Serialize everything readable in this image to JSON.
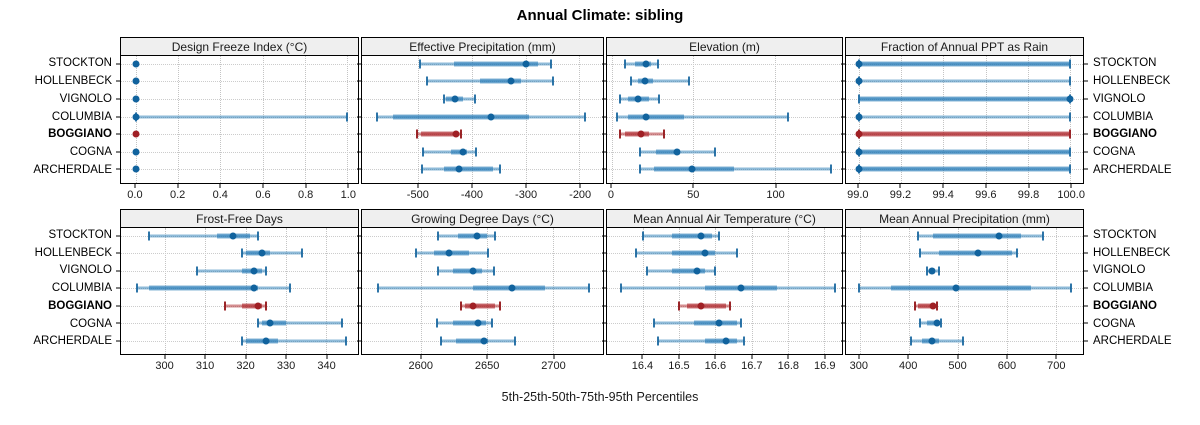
{
  "title": "Annual Climate: sibling",
  "caption": "5th-25th-50th-75th-95th Percentiles",
  "sites": [
    "STOCKTON",
    "HOLLENBECK",
    "VIGNOLO",
    "COLUMBIA",
    "BOGGIANO",
    "COGNA",
    "ARCHERDALE"
  ],
  "highlight_site": "BOGGIANO",
  "colors": {
    "series_blue": "#1f77b4",
    "series_red": "#a02025",
    "strip_background": "#efefef",
    "panel_border": "#000000",
    "grid_line": "#c4c4c4"
  },
  "percentile_labels": [
    "5th",
    "25th",
    "50th",
    "75th",
    "95th"
  ],
  "chart_data": [
    {
      "type": "interval-dotplot",
      "row": 0,
      "col": 0,
      "title": "Design Freeze Index (°C)",
      "xlim": [
        -0.07,
        1.05
      ],
      "ticks": [
        0.0,
        0.2,
        0.4,
        0.6,
        0.8,
        1.0
      ],
      "tick_labels": [
        "0.0",
        "0.2",
        "0.4",
        "0.6",
        "0.8",
        "1.0"
      ],
      "series": [
        {
          "site": "STOCKTON",
          "values": [
            0,
            0,
            0,
            0,
            0
          ]
        },
        {
          "site": "HOLLENBECK",
          "values": [
            0,
            0,
            0,
            0,
            0
          ]
        },
        {
          "site": "VIGNOLO",
          "values": [
            0,
            0,
            0,
            0,
            0
          ]
        },
        {
          "site": "COLUMBIA",
          "values": [
            0,
            0,
            0,
            0,
            1
          ]
        },
        {
          "site": "BOGGIANO",
          "values": [
            0,
            0,
            0,
            0,
            0
          ]
        },
        {
          "site": "COGNA",
          "values": [
            0,
            0,
            0,
            0,
            0
          ]
        },
        {
          "site": "ARCHERDALE",
          "values": [
            0,
            0,
            0,
            0,
            0
          ]
        }
      ]
    },
    {
      "type": "interval-dotplot",
      "row": 0,
      "col": 1,
      "title": "Effective Precipitation (mm)",
      "xlim": [
        -605,
        -156
      ],
      "ticks": [
        -500,
        -400,
        -300,
        -200
      ],
      "tick_labels": [
        "-500",
        "-400",
        "-300",
        "-200"
      ],
      "series": [
        {
          "site": "STOCKTON",
          "values": [
            -497,
            -433,
            -300,
            -278,
            -252
          ]
        },
        {
          "site": "HOLLENBECK",
          "values": [
            -484,
            -385,
            -327,
            -308,
            -249
          ]
        },
        {
          "site": "VIGNOLO",
          "values": [
            -452,
            -448,
            -431,
            -416,
            -394
          ]
        },
        {
          "site": "COLUMBIA",
          "values": [
            -577,
            -548,
            -364,
            -294,
            -190
          ]
        },
        {
          "site": "BOGGIANO",
          "values": [
            -502,
            -496,
            -430,
            -426,
            -420
          ]
        },
        {
          "site": "COGNA",
          "values": [
            -492,
            -440,
            -416,
            -410,
            -393
          ]
        },
        {
          "site": "ARCHERDALE",
          "values": [
            -494,
            -452,
            -424,
            -360,
            -348
          ]
        }
      ]
    },
    {
      "type": "interval-dotplot",
      "row": 0,
      "col": 2,
      "title": "Elevation (m)",
      "xlim": [
        -3,
        141
      ],
      "ticks": [
        0,
        50,
        100
      ],
      "tick_labels": [
        "0",
        "50",
        "100"
      ],
      "series": [
        {
          "site": "STOCKTON",
          "values": [
            8,
            14,
            21,
            24,
            28
          ]
        },
        {
          "site": "HOLLENBECK",
          "values": [
            12,
            16,
            20,
            25,
            47
          ]
        },
        {
          "site": "VIGNOLO",
          "values": [
            5,
            10,
            16,
            23,
            29
          ]
        },
        {
          "site": "COLUMBIA",
          "values": [
            3,
            10,
            21,
            44,
            108
          ]
        },
        {
          "site": "BOGGIANO",
          "values": [
            5,
            8,
            18,
            23,
            32
          ]
        },
        {
          "site": "COGNA",
          "values": [
            17,
            27,
            40,
            42,
            63
          ]
        },
        {
          "site": "ARCHERDALE",
          "values": [
            17,
            26,
            49,
            75,
            134
          ]
        }
      ]
    },
    {
      "type": "interval-dotplot",
      "row": 0,
      "col": 3,
      "title": "Fraction of Annual PPT as Rain",
      "xlim": [
        98.94,
        100.06
      ],
      "ticks": [
        99.0,
        99.2,
        99.4,
        99.6,
        99.8,
        100.0
      ],
      "tick_labels": [
        "99.0",
        "99.2",
        "99.4",
        "99.6",
        "99.8",
        "100.0"
      ],
      "series": [
        {
          "site": "STOCKTON",
          "values": [
            99,
            99,
            99,
            100,
            100
          ]
        },
        {
          "site": "HOLLENBECK",
          "values": [
            99,
            99,
            99,
            99,
            100
          ]
        },
        {
          "site": "VIGNOLO",
          "values": [
            99,
            99,
            100,
            100,
            100
          ]
        },
        {
          "site": "COLUMBIA",
          "values": [
            99,
            99,
            99,
            99,
            100
          ]
        },
        {
          "site": "BOGGIANO",
          "values": [
            99,
            99,
            99,
            100,
            100
          ]
        },
        {
          "site": "COGNA",
          "values": [
            99,
            99,
            99,
            100,
            100
          ]
        },
        {
          "site": "ARCHERDALE",
          "values": [
            99,
            99,
            99,
            100,
            100
          ]
        }
      ]
    },
    {
      "type": "interval-dotplot",
      "row": 1,
      "col": 0,
      "title": "Frost-Free Days",
      "xlim": [
        289,
        348
      ],
      "ticks": [
        300,
        310,
        320,
        330,
        340
      ],
      "tick_labels": [
        "300",
        "310",
        "320",
        "330",
        "340"
      ],
      "series": [
        {
          "site": "STOCKTON",
          "values": [
            296,
            313,
            317,
            321,
            323
          ]
        },
        {
          "site": "HOLLENBECK",
          "values": [
            319,
            320,
            324,
            326,
            334
          ]
        },
        {
          "site": "VIGNOLO",
          "values": [
            308,
            319,
            322,
            324,
            325
          ]
        },
        {
          "site": "COLUMBIA",
          "values": [
            293,
            296,
            322,
            323,
            331
          ]
        },
        {
          "site": "BOGGIANO",
          "values": [
            315,
            319,
            323,
            324,
            325
          ]
        },
        {
          "site": "COGNA",
          "values": [
            323,
            324,
            326,
            330,
            344
          ]
        },
        {
          "site": "ARCHERDALE",
          "values": [
            319,
            320,
            325,
            328,
            345
          ]
        }
      ]
    },
    {
      "type": "interval-dotplot",
      "row": 1,
      "col": 1,
      "title": "Growing Degree Days (°C)",
      "xlim": [
        2555,
        2738
      ],
      "ticks": [
        2600,
        2650,
        2700
      ],
      "tick_labels": [
        "2600",
        "2650",
        "2700"
      ],
      "series": [
        {
          "site": "STOCKTON",
          "values": [
            2613,
            2628,
            2642,
            2650,
            2656
          ]
        },
        {
          "site": "HOLLENBECK",
          "values": [
            2596,
            2610,
            2621,
            2636,
            2651
          ]
        },
        {
          "site": "VIGNOLO",
          "values": [
            2613,
            2624,
            2639,
            2646,
            2655
          ]
        },
        {
          "site": "COLUMBIA",
          "values": [
            2567,
            2639,
            2669,
            2694,
            2727
          ]
        },
        {
          "site": "BOGGIANO",
          "values": [
            2630,
            2633,
            2639,
            2656,
            2660
          ]
        },
        {
          "site": "COGNA",
          "values": [
            2612,
            2624,
            2643,
            2649,
            2654
          ]
        },
        {
          "site": "ARCHERDALE",
          "values": [
            2615,
            2626,
            2648,
            2651,
            2671
          ]
        }
      ]
    },
    {
      "type": "interval-dotplot",
      "row": 1,
      "col": 2,
      "title": "Mean Annual Air Temperature (°C)",
      "xlim": [
        16.3,
        16.95
      ],
      "ticks": [
        16.4,
        16.5,
        16.6,
        16.7,
        16.8,
        16.9
      ],
      "tick_labels": [
        "16.4",
        "16.5",
        "16.6",
        "16.7",
        "16.8",
        "16.9"
      ],
      "series": [
        {
          "site": "STOCKTON",
          "values": [
            16.4,
            16.48,
            16.56,
            16.59,
            16.61
          ]
        },
        {
          "site": "HOLLENBECK",
          "values": [
            16.38,
            16.48,
            16.57,
            16.6,
            16.66
          ]
        },
        {
          "site": "VIGNOLO",
          "values": [
            16.41,
            16.48,
            16.55,
            16.57,
            16.6
          ]
        },
        {
          "site": "COLUMBIA",
          "values": [
            16.34,
            16.57,
            16.67,
            16.77,
            16.93
          ]
        },
        {
          "site": "BOGGIANO",
          "values": [
            16.5,
            16.52,
            16.56,
            16.63,
            16.64
          ]
        },
        {
          "site": "COGNA",
          "values": [
            16.43,
            16.54,
            16.61,
            16.66,
            16.67
          ]
        },
        {
          "site": "ARCHERDALE",
          "values": [
            16.44,
            16.57,
            16.63,
            16.66,
            16.68
          ]
        }
      ]
    },
    {
      "type": "interval-dotplot",
      "row": 1,
      "col": 3,
      "title": "Mean Annual Precipitation (mm)",
      "xlim": [
        272,
        756
      ],
      "ticks": [
        300,
        400,
        500,
        600,
        700
      ],
      "tick_labels": [
        "300",
        "400",
        "500",
        "600",
        "700"
      ],
      "series": [
        {
          "site": "STOCKTON",
          "values": [
            420,
            450,
            585,
            630,
            675
          ]
        },
        {
          "site": "HOLLENBECK",
          "values": [
            423,
            462,
            542,
            610,
            622
          ]
        },
        {
          "site": "VIGNOLO",
          "values": [
            438,
            441,
            447,
            453,
            462
          ]
        },
        {
          "site": "COLUMBIA",
          "values": [
            299,
            364,
            497,
            650,
            732
          ]
        },
        {
          "site": "BOGGIANO",
          "values": [
            413,
            420,
            450,
            454,
            458
          ]
        },
        {
          "site": "COGNA",
          "values": [
            423,
            438,
            457,
            460,
            465
          ]
        },
        {
          "site": "ARCHERDALE",
          "values": [
            405,
            428,
            447,
            462,
            511
          ]
        }
      ]
    }
  ]
}
